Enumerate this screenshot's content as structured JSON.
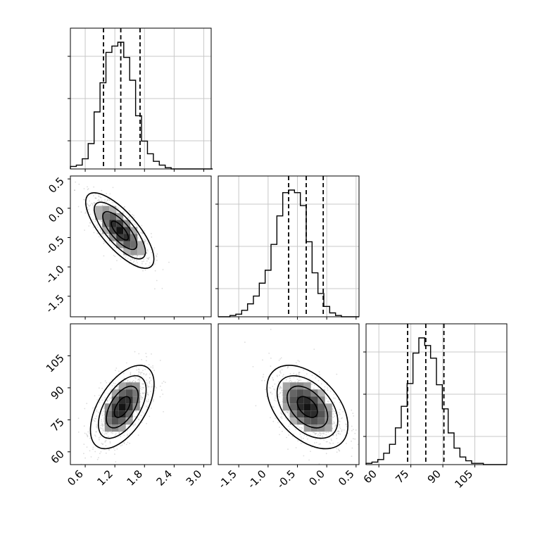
{
  "chart_data": {
    "type": "corner",
    "parameters": [
      {
        "ticks": [
          "0.6",
          "1.2",
          "1.8",
          "2.4",
          "3.0"
        ],
        "tick_values": [
          0.6,
          1.2,
          1.8,
          2.4,
          3.0
        ],
        "range": [
          0.3,
          3.15
        ],
        "quantiles": [
          0.97,
          1.32,
          1.71
        ],
        "histogram": {
          "bin_start": 0.3,
          "bin_width": 0.12,
          "counts": [
            2,
            3,
            8,
            20,
            45,
            68,
            92,
            97,
            100,
            88,
            70,
            42,
            22,
            12,
            6,
            3,
            1,
            0,
            0,
            0,
            0,
            0,
            0,
            0
          ]
        }
      },
      {
        "ticks": [
          "-1.5",
          "-1.0",
          "-0.5",
          "0.0",
          "0.5"
        ],
        "tick_values": [
          -1.5,
          -1.0,
          -0.5,
          0.0,
          0.5
        ],
        "range": [
          -1.85,
          0.55
        ],
        "quantiles": [
          -0.65,
          -0.35,
          -0.06
        ],
        "histogram": {
          "bin_start": -1.85,
          "bin_width": 0.1,
          "counts": [
            0,
            0,
            1,
            2,
            5,
            10,
            16,
            26,
            36,
            56,
            78,
            96,
            98,
            96,
            86,
            58,
            34,
            18,
            8,
            3,
            1,
            0,
            0,
            0
          ]
        }
      },
      {
        "ticks": [
          "60",
          "75",
          "90",
          "105"
        ],
        "tick_values": [
          60,
          75,
          90,
          105
        ],
        "range": [
          54,
          120
        ],
        "quantiles": [
          73.5,
          82,
          90.5
        ],
        "histogram": {
          "bin_start": 54,
          "bin_width": 2.75,
          "counts": [
            1,
            2,
            4,
            9,
            16,
            29,
            46,
            64,
            88,
            100,
            94,
            84,
            63,
            44,
            25,
            13,
            6,
            3,
            1,
            1,
            0,
            0,
            0,
            0
          ]
        }
      }
    ],
    "pairs": [
      {
        "x": 0,
        "y": 1,
        "mean": [
          1.3,
          -0.38
        ],
        "sd": [
          0.3,
          0.28
        ],
        "corr": -0.75
      },
      {
        "x": 0,
        "y": 2,
        "mean": [
          1.35,
          81
        ],
        "sd": [
          0.28,
          8.5
        ],
        "corr": 0.55
      },
      {
        "x": 1,
        "y": 2,
        "mean": [
          -0.33,
          81
        ],
        "sd": [
          0.3,
          8.5
        ],
        "corr": -0.45
      }
    ],
    "contour_levels_sigma": [
      0.5,
      1.0,
      1.5,
      2.0
    ],
    "grid": true,
    "style": {
      "line_color": "#000000",
      "grid_color": "#c8c8c8",
      "scatter_color": "#9a9a9a",
      "density_color": "#000000"
    }
  }
}
